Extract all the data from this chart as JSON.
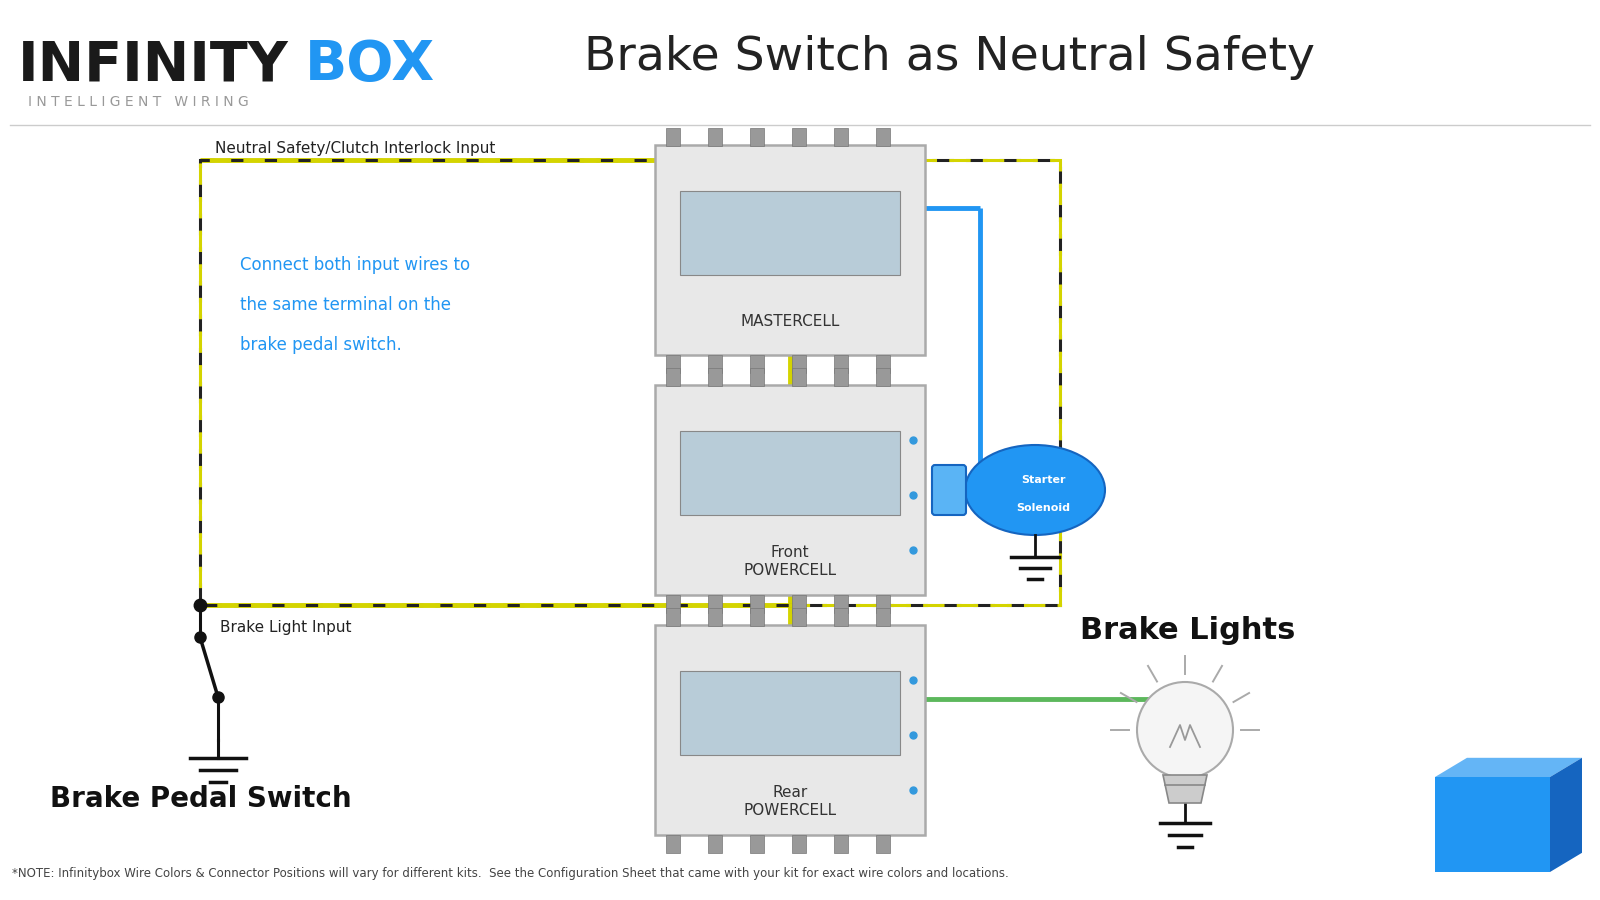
{
  "title": "Brake Switch as Neutral Safety",
  "logo_infinity": "INFINITY",
  "logo_box": "BOX",
  "logo_sub": "I N T E L L I G E N T   W I R I N G",
  "bg_color": "#ffffff",
  "title_color": "#222222",
  "logo_color": "#1a1a1a",
  "logo_box_color": "#2196F3",
  "subtitle_color": "#888888",
  "blue_text_color": "#2196F3",
  "dashed_box_color_black": "#222222",
  "dashed_box_color_yellow": "#d4d400",
  "wire_yellow": "#d4d400",
  "wire_green": "#5cb85c",
  "wire_blue": "#2196F3",
  "node_color": "#111111",
  "label_neutral_safety": "Neutral Safety/Clutch Interlock Input",
  "label_brake_light": "Brake Light Input",
  "label_connect_line1": "Connect both input wires to",
  "label_connect_line2": "the same terminal on the",
  "label_connect_line3": "brake pedal switch.",
  "label_brake_pedal": "Brake Pedal Switch",
  "label_mastercell": "MASTERCELL",
  "label_front_powercell": "Front\nPOWERCELL",
  "label_rear_powercell": "Rear\nPOWERCELL",
  "label_starter_line1": "Starter",
  "label_starter_line2": "Solenoid",
  "label_brake_lights": "Brake Lights",
  "label_note": "*NOTE: Infinitybox Wire Colors & Connector Positions will vary for different kits.  See the Configuration Sheet that came with your kit for exact wire colors and locations.",
  "mastercell_color": "#e0e0e0",
  "powercell_color": "#e0e0e0",
  "solenoid_color": "#2196F3",
  "lightbulb_color": "#f0f0f0"
}
